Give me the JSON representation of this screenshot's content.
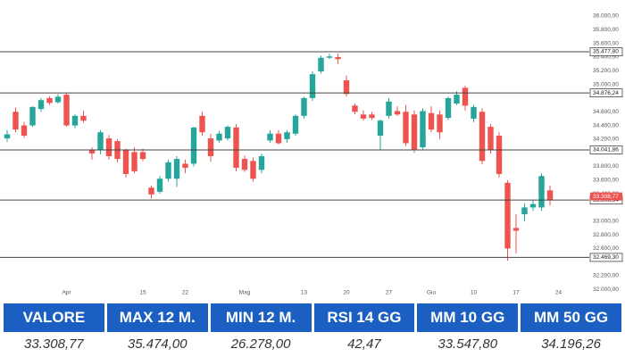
{
  "chart_data": {
    "type": "candlestick",
    "up_color": "#26a69a",
    "down_color": "#ef5350",
    "level_color": "#444444",
    "ylim": [
      31900,
      36170
    ],
    "yticks": [
      {
        "value": 36000,
        "label": "36.000,00"
      },
      {
        "value": 35800,
        "label": "35.800,00"
      },
      {
        "value": 35600,
        "label": "35.600,00"
      },
      {
        "value": 35400,
        "label": "35.400,00"
      },
      {
        "value": 35200,
        "label": "35.200,00"
      },
      {
        "value": 35000,
        "label": "35.000,00"
      },
      {
        "value": 34600,
        "label": "34.600,00"
      },
      {
        "value": 34400,
        "label": "34.400,00"
      },
      {
        "value": 34200,
        "label": "34.200,00"
      },
      {
        "value": 33800,
        "label": "33.800,00"
      },
      {
        "value": 33600,
        "label": "33.600,00"
      },
      {
        "value": 33400,
        "label": "33.400,00"
      },
      {
        "value": 33000,
        "label": "33.000,00"
      },
      {
        "value": 32800,
        "label": "32.800,00"
      },
      {
        "value": 32600,
        "label": "32.600,00"
      },
      {
        "value": 32200,
        "label": "32.200,00"
      },
      {
        "value": 32000,
        "label": "32.000,00"
      }
    ],
    "levels": [
      {
        "value": 35477.8,
        "label": "35.477,80"
      },
      {
        "value": 34876.24,
        "label": "34.876,24"
      },
      {
        "value": 34041.86,
        "label": "34.041,86"
      },
      {
        "value": 33308.34,
        "label": "33.308,34"
      },
      {
        "value": 32469.3,
        "label": "32.469,30"
      }
    ],
    "last_price": {
      "value": 33308.77,
      "label": "33.308,77"
    },
    "categories": [
      null,
      null,
      null,
      null,
      null,
      null,
      null,
      "Apr",
      null,
      null,
      null,
      null,
      null,
      null,
      null,
      null,
      "15",
      null,
      null,
      null,
      null,
      "22",
      null,
      null,
      null,
      null,
      null,
      null,
      "Mag",
      null,
      null,
      null,
      null,
      null,
      null,
      "13",
      null,
      null,
      null,
      null,
      "20",
      null,
      null,
      null,
      null,
      "27",
      null,
      null,
      null,
      null,
      "Giu",
      null,
      null,
      null,
      null,
      "10",
      null,
      null,
      null,
      null,
      "17",
      null,
      null,
      null,
      null,
      "24"
    ],
    "ohlc": [
      [
        34210,
        34330,
        34160,
        34270
      ],
      [
        34600,
        34660,
        34300,
        34340
      ],
      [
        34400,
        34450,
        34220,
        34250
      ],
      [
        34400,
        34680,
        34380,
        34670
      ],
      [
        34640,
        34800,
        34600,
        34770
      ],
      [
        34800,
        34830,
        34700,
        34730
      ],
      [
        34740,
        34860,
        34720,
        34820
      ],
      [
        34850,
        34880,
        34380,
        34400
      ],
      [
        34400,
        34560,
        34360,
        34540
      ],
      [
        34540,
        34620,
        34440,
        34470
      ],
      [
        34040,
        34080,
        33900,
        33990
      ],
      [
        34040,
        34330,
        33980,
        34300
      ],
      [
        34210,
        34260,
        33900,
        33950
      ],
      [
        34170,
        34200,
        33860,
        33910
      ],
      [
        34040,
        34060,
        33640,
        33690
      ],
      [
        34010,
        34080,
        33700,
        33730
      ],
      [
        34010,
        34060,
        33880,
        33910
      ],
      [
        33490,
        33520,
        33330,
        33390
      ],
      [
        33430,
        33660,
        33400,
        33620
      ],
      [
        33620,
        33900,
        33580,
        33860
      ],
      [
        33620,
        33950,
        33500,
        33910
      ],
      [
        33840,
        33900,
        33700,
        33780
      ],
      [
        33840,
        34380,
        33800,
        34370
      ],
      [
        34540,
        34600,
        34250,
        34300
      ],
      [
        34210,
        34280,
        33870,
        33950
      ],
      [
        34180,
        34320,
        34150,
        34280
      ],
      [
        34210,
        34400,
        34180,
        34380
      ],
      [
        34370,
        34420,
        33730,
        33780
      ],
      [
        33910,
        33960,
        33720,
        33750
      ],
      [
        33880,
        33930,
        33580,
        33620
      ],
      [
        33750,
        33990,
        33700,
        33950
      ],
      [
        34180,
        34330,
        34150,
        34280
      ],
      [
        34280,
        34330,
        34120,
        34140
      ],
      [
        34200,
        34330,
        34150,
        34300
      ],
      [
        34280,
        34560,
        34250,
        34540
      ],
      [
        34540,
        34820,
        34500,
        34800
      ],
      [
        34800,
        35190,
        34760,
        35150
      ],
      [
        35190,
        35420,
        35160,
        35390
      ],
      [
        35390,
        35450,
        35370,
        35410
      ],
      [
        35400,
        35450,
        35300,
        35370
      ],
      [
        35060,
        35130,
        34820,
        34860
      ],
      [
        34690,
        34720,
        34560,
        34600
      ],
      [
        34560,
        34620,
        34470,
        34500
      ],
      [
        34560,
        34600,
        34480,
        34510
      ],
      [
        34250,
        34490,
        34050,
        34470
      ],
      [
        34540,
        34800,
        34500,
        34750
      ],
      [
        34610,
        34680,
        34540,
        34560
      ],
      [
        34600,
        34700,
        34100,
        34140
      ],
      [
        34560,
        34620,
        34000,
        34040
      ],
      [
        34080,
        34650,
        34050,
        34610
      ],
      [
        34580,
        34680,
        34300,
        34340
      ],
      [
        34560,
        34620,
        34200,
        34300
      ],
      [
        34510,
        34820,
        34480,
        34800
      ],
      [
        34720,
        34900,
        34700,
        34850
      ],
      [
        34950,
        34980,
        34620,
        34690
      ],
      [
        34500,
        34700,
        34450,
        34670
      ],
      [
        34600,
        34650,
        33830,
        33880
      ],
      [
        34380,
        34420,
        33990,
        34040
      ],
      [
        34250,
        34300,
        33640,
        33690
      ],
      [
        33560,
        33600,
        32420,
        32600
      ],
      [
        32900,
        33100,
        32530,
        32860
      ],
      [
        33100,
        33260,
        33000,
        33200
      ],
      [
        33200,
        33300,
        33150,
        33250
      ],
      [
        33200,
        33700,
        33150,
        33660
      ],
      [
        33450,
        33520,
        33230,
        33310
      ],
      null
    ]
  },
  "table": {
    "headers": [
      "VALORE",
      "MAX 12 M.",
      "MIN 12 M.",
      "RSI 14 GG",
      "MM 10 GG",
      "MM 50 GG"
    ],
    "values": [
      "33.308,77",
      "35.474,00",
      "26.278,00",
      "42,47",
      "33.547,80",
      "34.196,26"
    ]
  }
}
